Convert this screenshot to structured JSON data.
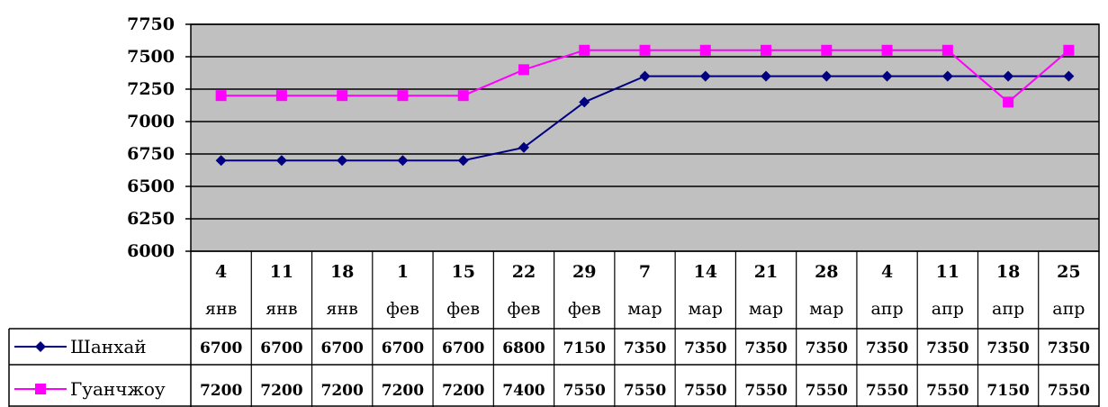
{
  "chart_data": {
    "type": "line",
    "categories": [
      {
        "day": "4",
        "month": "янв"
      },
      {
        "day": "11",
        "month": "янв"
      },
      {
        "day": "18",
        "month": "янв"
      },
      {
        "day": "1",
        "month": "фев"
      },
      {
        "day": "15",
        "month": "фев"
      },
      {
        "day": "22",
        "month": "фев"
      },
      {
        "day": "29",
        "month": "фев"
      },
      {
        "day": "7",
        "month": "мар"
      },
      {
        "day": "14",
        "month": "мар"
      },
      {
        "day": "21",
        "month": "мар"
      },
      {
        "day": "28",
        "month": "мар"
      },
      {
        "day": "4",
        "month": "апр"
      },
      {
        "day": "11",
        "month": "апр"
      },
      {
        "day": "18",
        "month": "апр"
      },
      {
        "day": "25",
        "month": "апр"
      }
    ],
    "series": [
      {
        "name": "Шанхай",
        "color": "#000080",
        "marker": "diamond",
        "values": [
          6700,
          6700,
          6700,
          6700,
          6700,
          6800,
          7150,
          7350,
          7350,
          7350,
          7350,
          7350,
          7350,
          7350,
          7350
        ]
      },
      {
        "name": "Гуанчжоу",
        "color": "#ff00ff",
        "marker": "square",
        "values": [
          7200,
          7200,
          7200,
          7200,
          7200,
          7400,
          7550,
          7550,
          7550,
          7550,
          7550,
          7550,
          7550,
          7150,
          7550
        ]
      }
    ],
    "ylim": [
      6000,
      7750
    ],
    "yticks": [
      6000,
      6250,
      6500,
      6750,
      7000,
      7250,
      7500,
      7750
    ],
    "grid": true,
    "plot_background": "#c0c0c0",
    "data_table": true,
    "legend": "data-table-left"
  }
}
